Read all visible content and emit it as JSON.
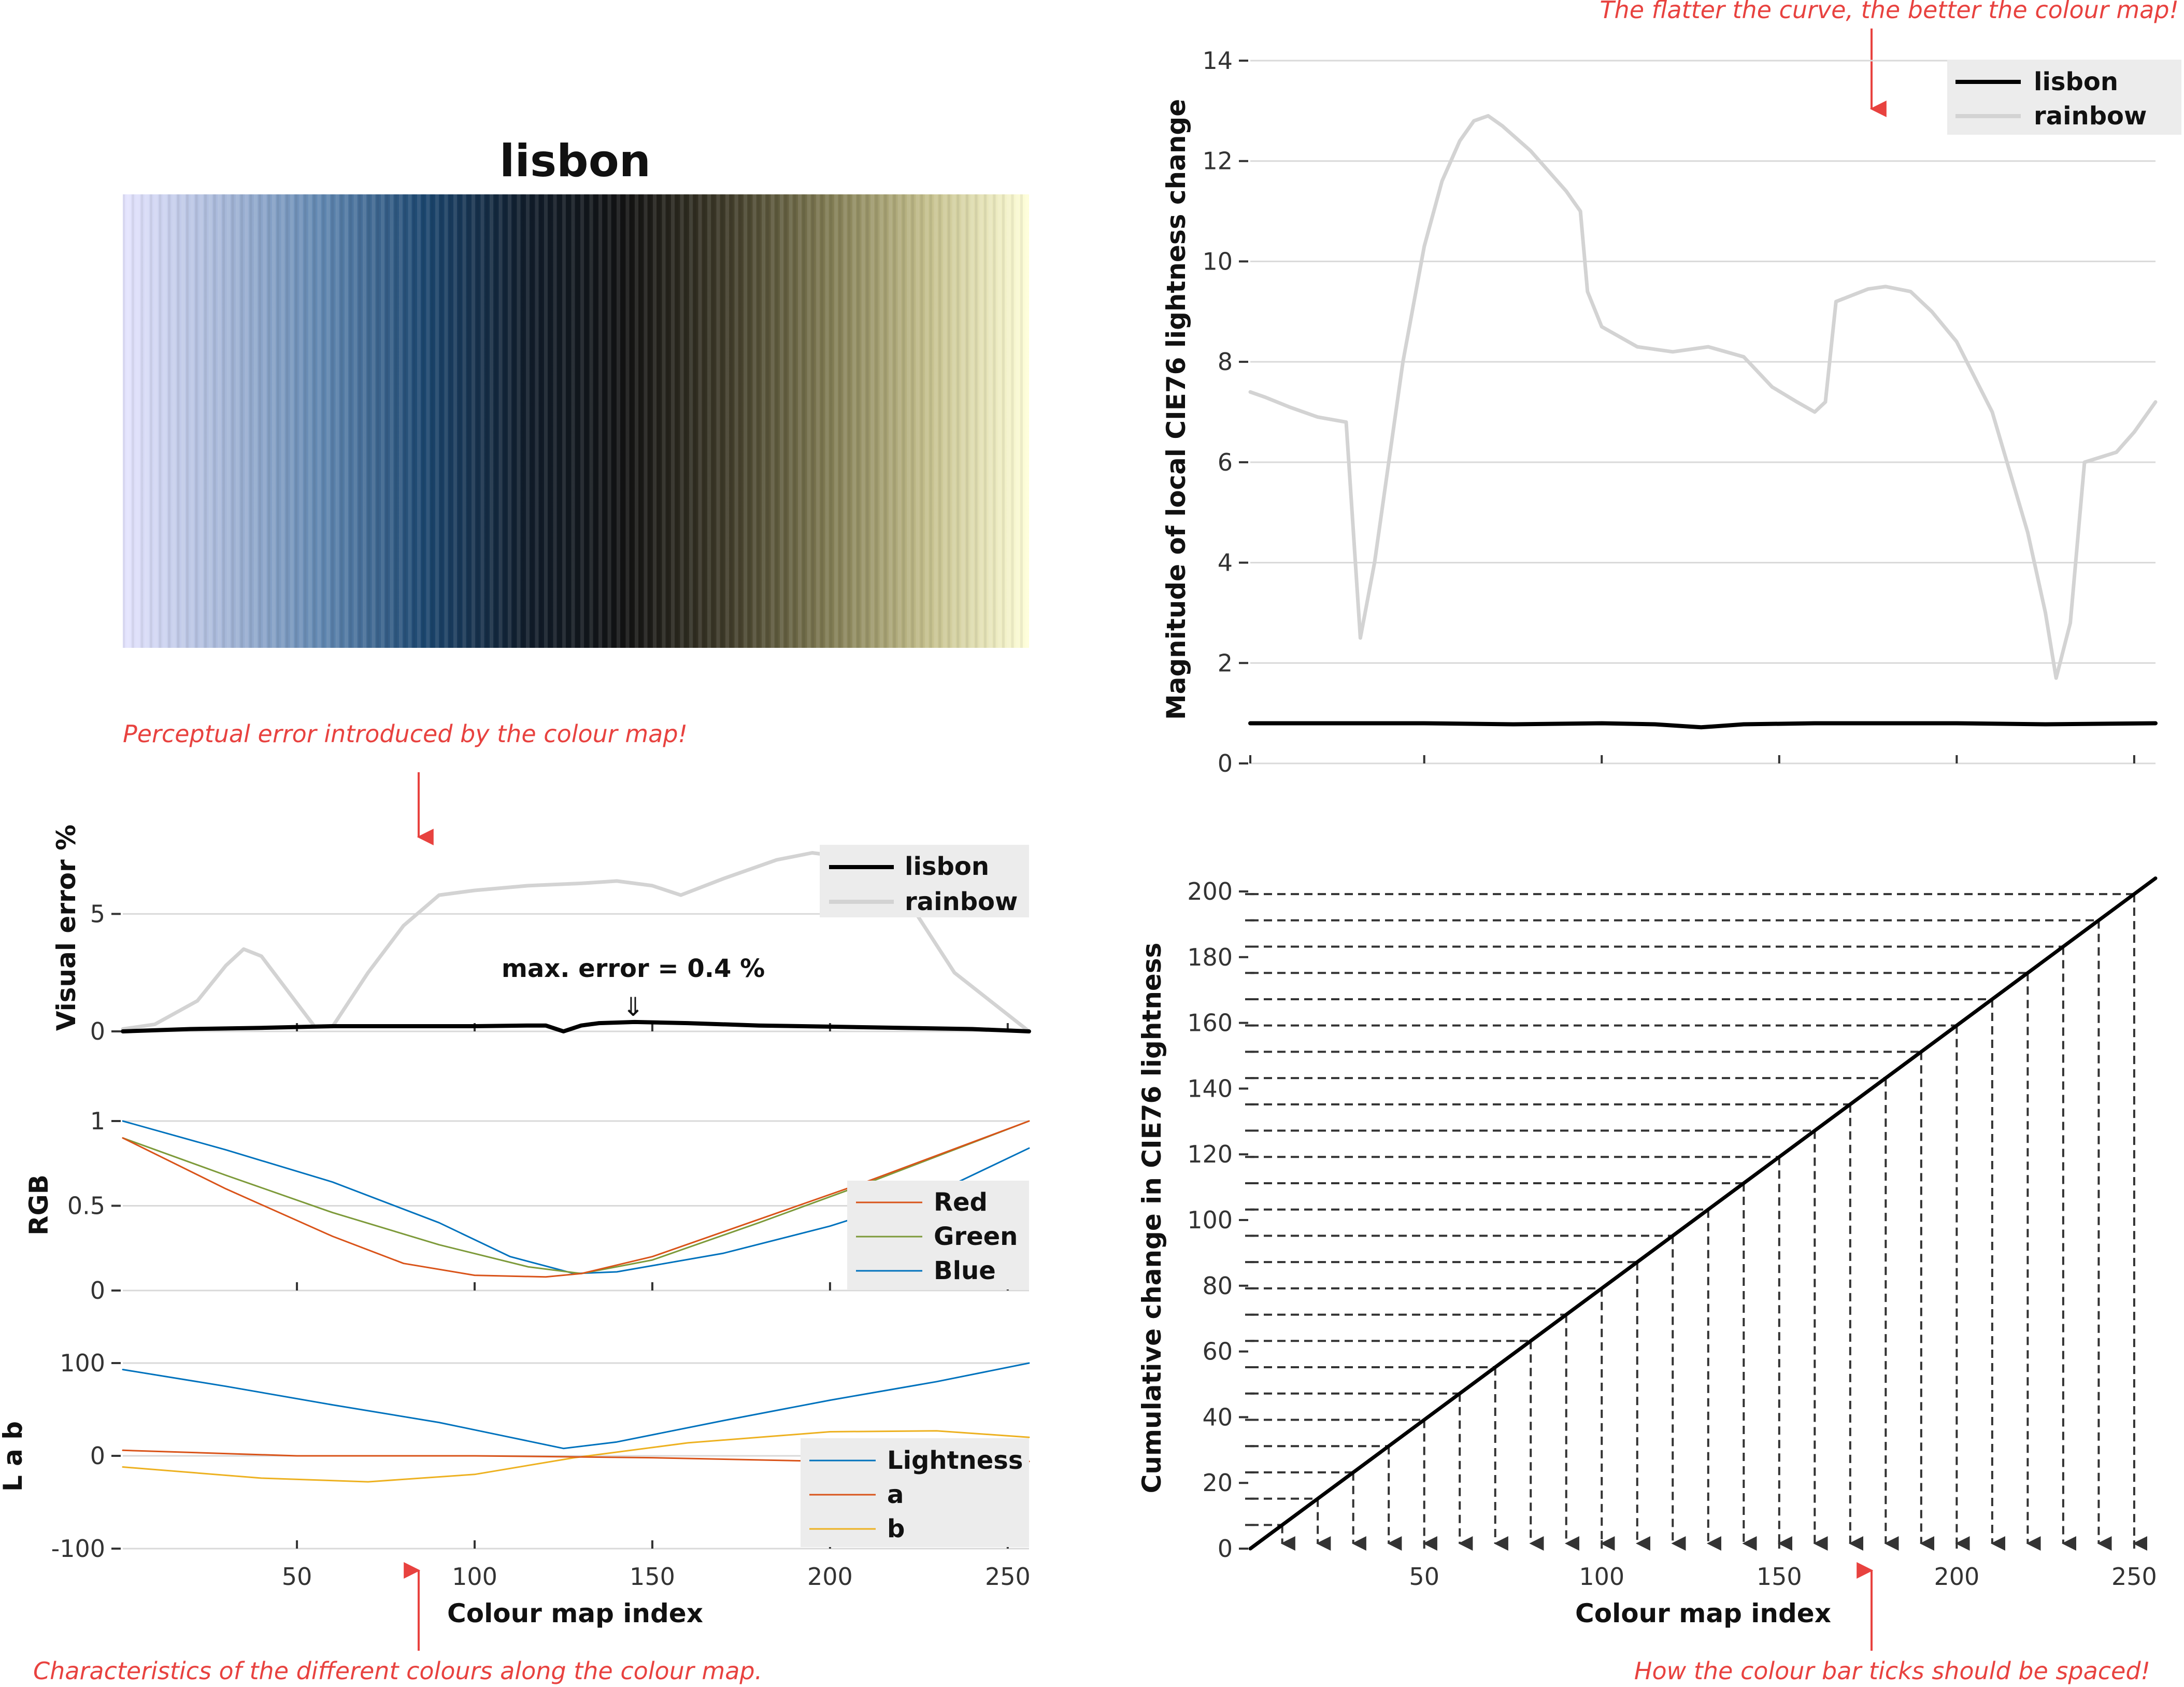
{
  "title": "lisbon",
  "annotations": {
    "perceptual": "Perceptual error introduced by the colour map!",
    "characteristics": "Characteristics of the different colours along the colour map.",
    "flatter": "The flatter the curve, the better the colour map!",
    "ticks": "How the colour bar ticks should be spaced!"
  },
  "colors": {
    "lisbon_line": "#000000",
    "rainbow_line": "#d3d3d3",
    "red": "#d95319",
    "green": "#7d9a3a",
    "blue": "#0072bd",
    "lightness": "#0072bd",
    "a": "#d95319",
    "b": "#edb120",
    "annotation": "#e8423f"
  },
  "chart_data": [
    {
      "id": "colorbar",
      "type": "heatmap",
      "title": "lisbon",
      "colormap_stops": [
        "#e6e5ff",
        "#a7b8d9",
        "#5f86b0",
        "#1b466f",
        "#101c2a",
        "#121212",
        "#3e3a28",
        "#7f7a52",
        "#c5c08d",
        "#ffffd9"
      ]
    },
    {
      "id": "visual-error",
      "type": "line",
      "ylabel": "Visual error %",
      "xlim": [
        1,
        256
      ],
      "ylim": [
        0,
        7.5
      ],
      "yticks": [
        "0",
        "5"
      ],
      "annotation": "max. error =  0.4 %",
      "series": [
        {
          "name": "lisbon",
          "x": [
            1,
            20,
            40,
            60,
            80,
            100,
            115,
            120,
            125,
            130,
            135,
            145,
            160,
            180,
            200,
            220,
            240,
            256
          ],
          "y": [
            0.0,
            0.1,
            0.15,
            0.22,
            0.22,
            0.22,
            0.25,
            0.25,
            0.0,
            0.25,
            0.35,
            0.4,
            0.35,
            0.25,
            0.2,
            0.15,
            0.1,
            0.0
          ]
        },
        {
          "name": "rainbow",
          "x": [
            1,
            10,
            22,
            30,
            35,
            40,
            50,
            55,
            60,
            70,
            80,
            90,
            100,
            115,
            130,
            140,
            150,
            158,
            170,
            185,
            195,
            200,
            210,
            220,
            235,
            256
          ],
          "y": [
            0.1,
            0.3,
            1.3,
            2.8,
            3.5,
            3.2,
            1.2,
            0.2,
            0.2,
            2.5,
            4.5,
            5.8,
            6.0,
            6.2,
            6.3,
            6.4,
            6.2,
            5.8,
            6.5,
            7.3,
            7.6,
            7.5,
            7.0,
            6.0,
            2.5,
            0.0
          ]
        }
      ]
    },
    {
      "id": "rgb",
      "type": "line",
      "ylabel": "RGB",
      "xlim": [
        1,
        256
      ],
      "ylim": [
        0,
        1
      ],
      "yticks": [
        "0",
        "0.5",
        "1"
      ],
      "series": [
        {
          "name": "Red",
          "x": [
            1,
            30,
            60,
            80,
            100,
            120,
            130,
            150,
            180,
            210,
            256
          ],
          "y": [
            0.9,
            0.6,
            0.32,
            0.16,
            0.09,
            0.08,
            0.1,
            0.2,
            0.42,
            0.64,
            1.0
          ]
        },
        {
          "name": "Green",
          "x": [
            1,
            30,
            60,
            90,
            115,
            130,
            150,
            180,
            210,
            256
          ],
          "y": [
            0.9,
            0.68,
            0.46,
            0.27,
            0.14,
            0.1,
            0.18,
            0.4,
            0.63,
            1.0
          ]
        },
        {
          "name": "Blue",
          "x": [
            1,
            30,
            60,
            90,
            110,
            128,
            140,
            170,
            200,
            230,
            256
          ],
          "y": [
            1.0,
            0.83,
            0.64,
            0.4,
            0.2,
            0.1,
            0.11,
            0.22,
            0.38,
            0.58,
            0.84
          ]
        }
      ]
    },
    {
      "id": "lab",
      "type": "line",
      "ylabel": "L a b",
      "xlabel": "Colour map index",
      "xlim": [
        1,
        256
      ],
      "ylim": [
        -100,
        100
      ],
      "yticks": [
        "-100",
        "0",
        "100"
      ],
      "xticks": [
        "50",
        "100",
        "150",
        "200",
        "250"
      ],
      "series": [
        {
          "name": "Lightness",
          "x": [
            1,
            30,
            60,
            90,
            110,
            125,
            140,
            170,
            200,
            230,
            256
          ],
          "y": [
            93,
            75,
            55,
            36,
            20,
            8,
            15,
            38,
            60,
            80,
            100
          ]
        },
        {
          "name": "a",
          "x": [
            1,
            50,
            100,
            150,
            200,
            256
          ],
          "y": [
            6,
            0,
            0,
            -2,
            -6,
            -6
          ]
        },
        {
          "name": "b",
          "x": [
            1,
            40,
            70,
            100,
            128,
            160,
            200,
            230,
            256
          ],
          "y": [
            -12,
            -24,
            -28,
            -20,
            -2,
            14,
            26,
            27,
            20
          ]
        }
      ]
    },
    {
      "id": "local-lightness",
      "type": "line",
      "ylabel": "Magnitude of local CIE76 lightness change",
      "xlim": [
        1,
        256
      ],
      "ylim": [
        0,
        14
      ],
      "yticks": [
        "0",
        "2",
        "4",
        "6",
        "8",
        "10",
        "12",
        "14"
      ],
      "series": [
        {
          "name": "lisbon",
          "x": [
            1,
            50,
            75,
            100,
            115,
            128,
            140,
            160,
            200,
            225,
            256
          ],
          "y": [
            0.8,
            0.8,
            0.78,
            0.8,
            0.78,
            0.72,
            0.78,
            0.8,
            0.8,
            0.78,
            0.8
          ]
        },
        {
          "name": "rainbow",
          "x": [
            1,
            5,
            12,
            20,
            28,
            32,
            36,
            44,
            50,
            55,
            60,
            64,
            68,
            72,
            80,
            90,
            94,
            96,
            100,
            110,
            120,
            130,
            140,
            148,
            155,
            160,
            163,
            166,
            175,
            180,
            187,
            193,
            200,
            210,
            220,
            225,
            228,
            232,
            236,
            245,
            250,
            256
          ],
          "y": [
            7.4,
            7.3,
            7.1,
            6.9,
            6.8,
            2.5,
            4.0,
            8.0,
            10.3,
            11.6,
            12.4,
            12.8,
            12.9,
            12.7,
            12.2,
            11.4,
            11.0,
            9.4,
            8.7,
            8.3,
            8.2,
            8.3,
            8.1,
            7.5,
            7.2,
            7.0,
            7.2,
            9.2,
            9.45,
            9.5,
            9.4,
            9.0,
            8.4,
            7.0,
            4.6,
            3.0,
            1.7,
            2.8,
            6.0,
            6.2,
            6.6,
            7.2
          ]
        }
      ]
    },
    {
      "id": "cumulative",
      "type": "line",
      "ylabel": "Cumulative change in CIE76 lightness",
      "xlabel": "Colour map index",
      "xlim": [
        1,
        256
      ],
      "ylim": [
        0,
        200
      ],
      "yticks": [
        "0",
        "20",
        "40",
        "60",
        "80",
        "100",
        "120",
        "140",
        "160",
        "180",
        "200"
      ],
      "xticks": [
        "50",
        "100",
        "150",
        "200",
        "250"
      ],
      "series": [
        {
          "name": "lisbon",
          "x": [
            1,
            256
          ],
          "y": [
            0,
            204
          ]
        }
      ],
      "tick_spacing_indices": [
        10,
        20,
        30,
        40,
        50,
        60,
        70,
        80,
        90,
        100,
        110,
        120,
        130,
        140,
        150,
        160,
        170,
        180,
        190,
        200,
        210,
        220,
        230,
        240,
        250
      ]
    }
  ]
}
